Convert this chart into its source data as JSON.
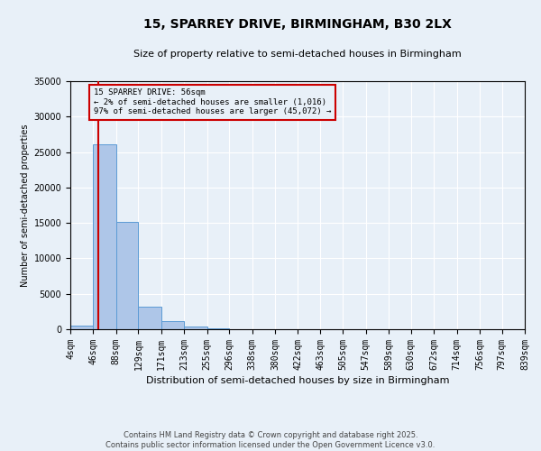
{
  "title_line1": "15, SPARREY DRIVE, BIRMINGHAM, B30 2LX",
  "title_line2": "Size of property relative to semi-detached houses in Birmingham",
  "xlabel": "Distribution of semi-detached houses by size in Birmingham",
  "ylabel": "Number of semi-detached properties",
  "bins": [
    4,
    46,
    88,
    129,
    171,
    213,
    255,
    296,
    338,
    380,
    422,
    463,
    505,
    547,
    589,
    630,
    672,
    714,
    756,
    797,
    839
  ],
  "counts": [
    500,
    26100,
    15200,
    3200,
    1200,
    350,
    100,
    50,
    30,
    20,
    15,
    10,
    8,
    6,
    5,
    4,
    3,
    2,
    2,
    1
  ],
  "bar_color": "#aec6e8",
  "bar_edge_color": "#5b9bd5",
  "ylim": [
    0,
    35000
  ],
  "yticks": [
    0,
    5000,
    10000,
    15000,
    20000,
    25000,
    30000,
    35000
  ],
  "property_size": 56,
  "red_line_color": "#cc0000",
  "annotation_text": "15 SPARREY DRIVE: 56sqm\n← 2% of semi-detached houses are smaller (1,016)\n97% of semi-detached houses are larger (45,072) →",
  "annotation_box_color": "#cc0000",
  "bg_color": "#e8f0f8",
  "footer_line1": "Contains HM Land Registry data © Crown copyright and database right 2025.",
  "footer_line2": "Contains public sector information licensed under the Open Government Licence v3.0.",
  "grid_color": "#ffffff",
  "title_fontsize": 10,
  "subtitle_fontsize": 8,
  "ylabel_fontsize": 7,
  "xlabel_fontsize": 8,
  "tick_fontsize": 7,
  "footer_fontsize": 6
}
